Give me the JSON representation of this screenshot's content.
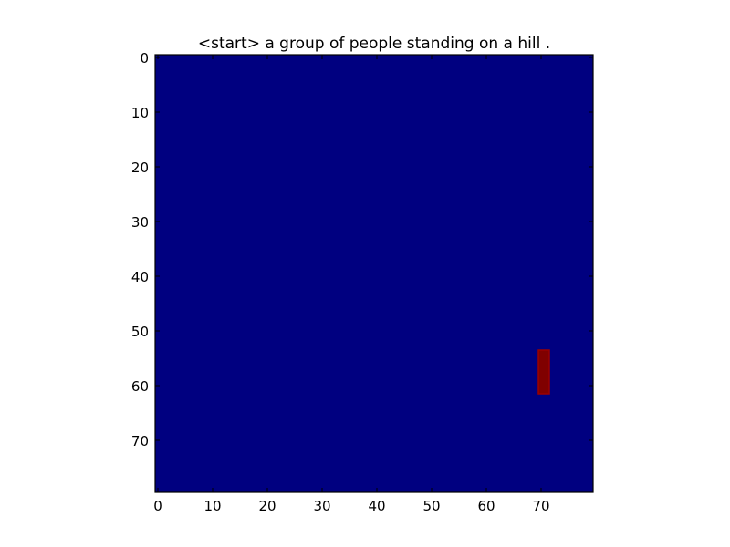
{
  "chart_data": {
    "type": "heatmap",
    "title": "<start> a group of people standing on a hill .",
    "xlabel": "",
    "ylabel": "",
    "xlim": [
      -0.5,
      79.5
    ],
    "ylim": [
      79.5,
      -0.5
    ],
    "x_ticks": [
      0,
      10,
      20,
      30,
      40,
      50,
      60,
      70
    ],
    "y_ticks": [
      0,
      10,
      20,
      30,
      40,
      50,
      60,
      70
    ],
    "grid": false,
    "colormap": "jet",
    "background_value": 0,
    "background_color": "#000080",
    "highlight_color": "#800000",
    "highlight_edge_color": "#9a0000",
    "hot_region": {
      "x_start": 70,
      "x_end": 71,
      "y_start": 54,
      "y_end": 61,
      "value": 1
    }
  }
}
